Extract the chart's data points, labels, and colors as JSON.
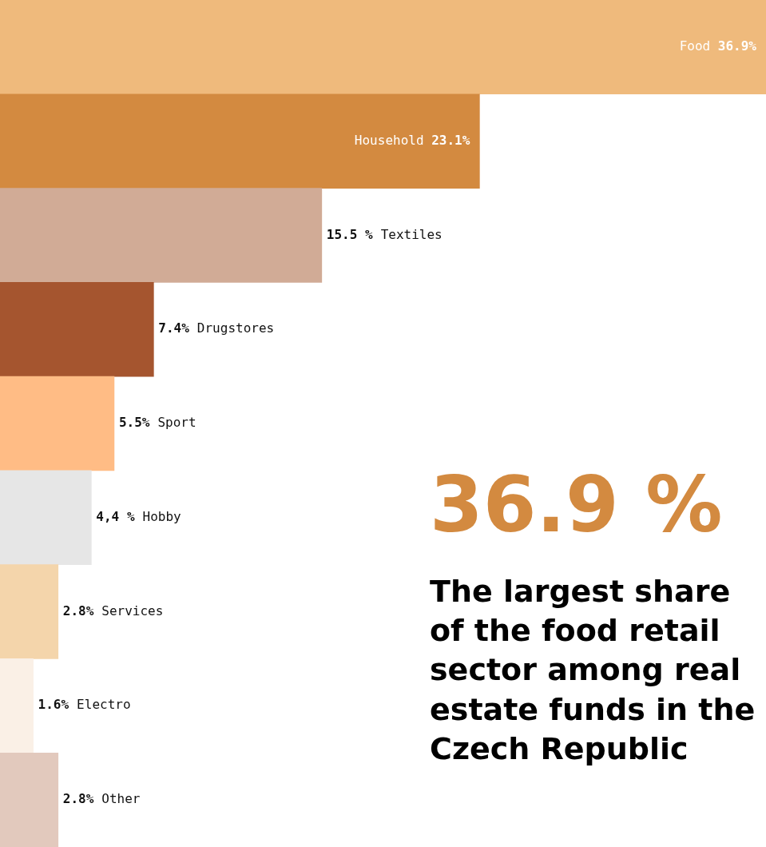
{
  "chart_data": {
    "type": "bar",
    "orientation": "horizontal",
    "categories": [
      "Food",
      "Household",
      "Textiles",
      "Drugstores",
      "Sport",
      "Hobby",
      "Services",
      "Electro",
      "Other"
    ],
    "values": [
      36.9,
      23.1,
      15.5,
      7.4,
      5.5,
      4.4,
      2.8,
      1.6,
      2.8
    ],
    "value_labels": [
      "36.9%",
      "23.1%",
      "15.5 %",
      "7.4%",
      "5.5%",
      "4,4 %",
      "2.8%",
      "1.6%",
      "2.8%"
    ],
    "colors": [
      "#efba7c",
      "#d38a40",
      "#d1ab96",
      "#a5552f",
      "#ffbc85",
      "#e6e6e6",
      "#f4d5ab",
      "#faf0e6",
      "#e2c9bd"
    ],
    "annotations": [
      "36.9 %",
      "The largest share of the food retail sector among real estate funds in the Czech Republic"
    ],
    "legend": false
  }
}
